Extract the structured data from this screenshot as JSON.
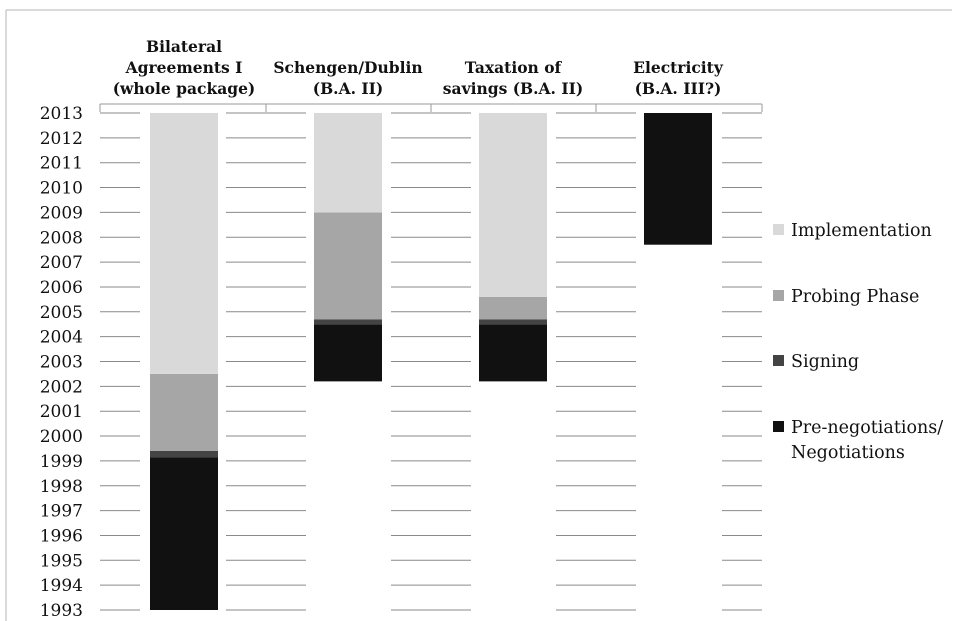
{
  "chart_data": {
    "type": "bar",
    "subtype": "stacked-floating",
    "title": "",
    "xlabel": "",
    "ylabel": "",
    "ylim": [
      1993,
      2013
    ],
    "y_ticks": [
      "2013",
      "2012",
      "2011",
      "2010",
      "2009",
      "2008",
      "2007",
      "2006",
      "2005",
      "2004",
      "2003",
      "2002",
      "2001",
      "2000",
      "1999",
      "1998",
      "1997",
      "1996",
      "1995",
      "1994",
      "1993"
    ],
    "categories": [
      [
        "Bilateral",
        "Agreements I",
        "(whole package)"
      ],
      [
        "Schengen/Dublin",
        "(B.A. II)"
      ],
      [
        "Taxation of",
        "savings (B.A. II)"
      ],
      [
        "Electricity",
        "(B.A. III?)"
      ]
    ],
    "series": [
      {
        "name": "Pre-negotiations/ Negotiations",
        "legend_lines": [
          "Pre-negotiations/",
          "Negotiations"
        ],
        "color": "#111111",
        "ranges": [
          [
            1993.0,
            1999.15
          ],
          [
            2002.2,
            2004.5
          ],
          [
            2002.2,
            2004.5
          ],
          [
            2007.7,
            2013.0
          ]
        ]
      },
      {
        "name": "Signing",
        "legend_lines": [
          "Signing"
        ],
        "color": "#444444",
        "ranges": [
          [
            1999.15,
            1999.4
          ],
          [
            2004.5,
            2004.7
          ],
          [
            2004.5,
            2004.7
          ],
          null
        ]
      },
      {
        "name": "Probing Phase",
        "legend_lines": [
          "Probing Phase"
        ],
        "color": "#a6a6a6",
        "ranges": [
          [
            1999.4,
            2002.5
          ],
          [
            2004.7,
            2009.0
          ],
          [
            2004.7,
            2005.6
          ],
          null
        ]
      },
      {
        "name": "Implementation",
        "legend_lines": [
          "Implementation"
        ],
        "color": "#d9d9d9",
        "ranges": [
          [
            2002.5,
            2013.0
          ],
          [
            2009.0,
            2013.0
          ],
          [
            2005.6,
            2013.0
          ],
          null
        ]
      }
    ],
    "legend_order": [
      3,
      2,
      1,
      0
    ],
    "legend_position": "right",
    "grid": false
  }
}
